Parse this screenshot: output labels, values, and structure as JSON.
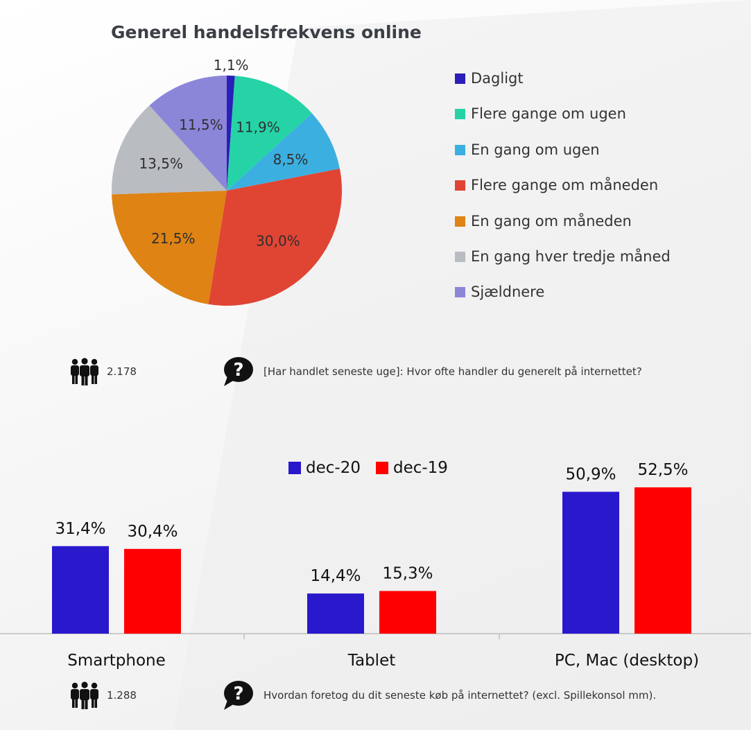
{
  "pie": {
    "title": "Generel handelsfrekvens online",
    "respondents": "2.178",
    "question": "[Har handlet seneste uge]: Hvor ofte handler du generelt på internettet?"
  },
  "bars": {
    "respondents": "1.288",
    "question": "Hvordan foretog du dit seneste køb på internettet? (excl. Spillekonsol mm)."
  },
  "chart_data": [
    {
      "type": "pie",
      "title": "Generel handelsfrekvens online",
      "legend_position": "right",
      "slices": [
        {
          "label": "Dagligt",
          "value": 1.1,
          "display": "1,1%",
          "color": "#2a1fb8"
        },
        {
          "label": "Flere gange om ugen",
          "value": 11.9,
          "display": "11,9%",
          "color": "#25d3a6"
        },
        {
          "label": "En gang om ugen",
          "value": 8.5,
          "display": "8,5%",
          "color": "#3bb0e0"
        },
        {
          "label": "Flere gange om måneden",
          "value": 30.0,
          "display": "30,0%",
          "color": "#e04534"
        },
        {
          "label": "En gang om måneden",
          "value": 21.5,
          "display": "21,5%",
          "color": "#de8314"
        },
        {
          "label": "En gang hver tredje måned",
          "value": 13.5,
          "display": "13,5%",
          "color": "#b9bcc0"
        },
        {
          "label": "Sjældnere",
          "value": 11.5,
          "display": "11,5%",
          "color": "#8c86d9"
        }
      ]
    },
    {
      "type": "bar",
      "categories": [
        "Smartphone",
        "Tablet",
        "PC, Mac (desktop)"
      ],
      "legend_position": "top-center",
      "grid": false,
      "ylim": [
        0,
        55
      ],
      "series": [
        {
          "name": "dec-20",
          "color": "#2a18cc",
          "values": [
            31.4,
            14.4,
            50.9
          ],
          "labels": [
            "31,4%",
            "14,4%",
            "50,9%"
          ]
        },
        {
          "name": "dec-19",
          "color": "#ff0000",
          "values": [
            30.4,
            15.3,
            52.5
          ],
          "labels": [
            "30,4%",
            "15,3%",
            "52,5%"
          ]
        }
      ]
    }
  ]
}
